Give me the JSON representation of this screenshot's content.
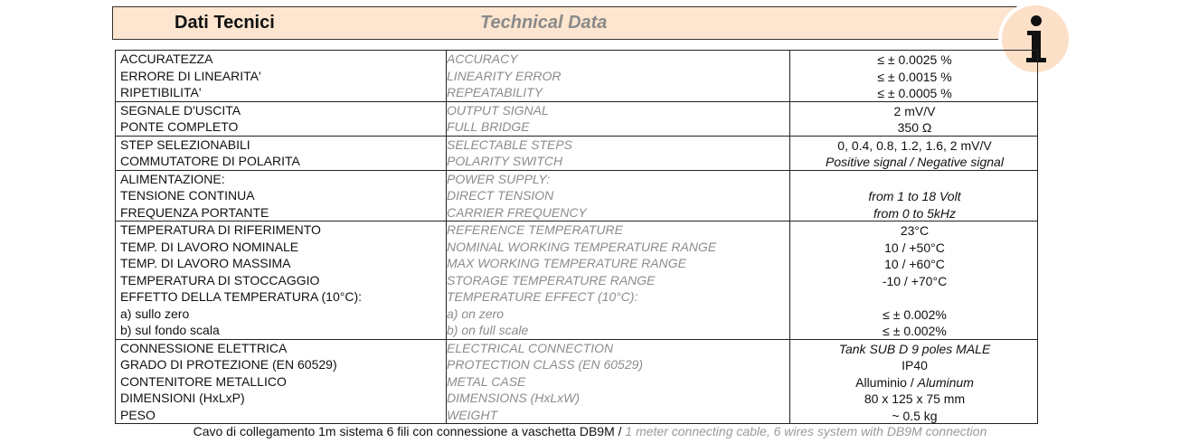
{
  "header": {
    "title_it": "Dati Tecnici",
    "title_en": "Technical Data"
  },
  "groups": [
    {
      "rows": [
        {
          "it": "ACCURATEZZA",
          "en": "ACCURACY",
          "value": "≤ ± 0.0025 %"
        },
        {
          "it": "ERRORE DI LINEARITA'",
          "en": "LINEARITY ERROR",
          "value": "≤ ± 0.0015 %"
        },
        {
          "it": "RIPETIBILITA'",
          "en": "REPEATABILITY",
          "value": "≤ ± 0.0005 %"
        }
      ]
    },
    {
      "rows": [
        {
          "it": "SEGNALE D'USCITA",
          "en": "OUTPUT SIGNAL",
          "value": "2 mV/V"
        },
        {
          "it": "PONTE COMPLETO",
          "en": "FULL BRIDGE",
          "value": "350 Ω"
        }
      ]
    },
    {
      "rows": [
        {
          "it": "STEP SELEZIONABILI",
          "en": "SELECTABLE STEPS",
          "value": "0, 0.4, 0.8, 1.2, 1.6, 2 mV/V"
        },
        {
          "it": "COMMUTATORE DI POLARITA",
          "en": "POLARITY SWITCH",
          "value_italic": "Positive signal / Negative signal"
        }
      ]
    },
    {
      "rows": [
        {
          "it": "ALIMENTAZIONE:",
          "en": "POWER SUPPLY:"
        },
        {
          "it": "TENSIONE CONTINUA",
          "en": "DIRECT TENSION",
          "value_italic": "from 1 to 18 Volt"
        },
        {
          "it": "FREQUENZA PORTANTE",
          "en": "CARRIER FREQUENCY",
          "value_italic": "from 0 to 5kHz"
        }
      ]
    },
    {
      "rows": [
        {
          "it": "TEMPERATURA DI RIFERIMENTO",
          "en": "REFERENCE TEMPERATURE",
          "value": "23°C"
        },
        {
          "it": "TEMP. DI LAVORO NOMINALE",
          "en": "NOMINAL WORKING TEMPERATURE RANGE",
          "value": "10 / +50°C"
        },
        {
          "it": "TEMP. DI LAVORO MASSIMA",
          "en": "MAX WORKING TEMPERATURE RANGE",
          "value": "10 / +60°C"
        },
        {
          "it": "TEMPERATURA DI STOCCAGGIO",
          "en": "STORAGE TEMPERATURE RANGE",
          "value": "-10 / +70°C"
        },
        {
          "it": "EFFETTO DELLA TEMPERATURA (10°C):",
          "en": "TEMPERATURE EFFECT (10°C):"
        },
        {
          "it": "a) sullo zero",
          "en": "a) on zero",
          "value": "≤ ± 0.002%"
        },
        {
          "it": "b) sul fondo scala",
          "en": "b) on full scale",
          "value": "≤ ± 0.002%"
        }
      ]
    },
    {
      "rows": [
        {
          "it": "CONNESSIONE ELETTRICA",
          "en": "ELECTRICAL CONNECTION",
          "value_italic": "Tank SUB D 9 poles MALE"
        },
        {
          "it": "GRADO DI PROTEZIONE (EN 60529)",
          "en": "PROTECTION CLASS (EN 60529)",
          "value": "IP40"
        },
        {
          "it": "CONTENITORE METALLICO",
          "en": "METAL CASE",
          "value": "Alluminio /",
          "value_italic": "Aluminum"
        },
        {
          "it": "DIMENSIONI (HxLxP)",
          "en": "DIMENSIONS (HxLxW)",
          "value": "80 x 125 x 75 mm"
        },
        {
          "it": "PESO",
          "en": "WEIGHT",
          "value": "~ 0.5 kg"
        }
      ]
    }
  ],
  "footer": {
    "it": "Cavo di collegamento 1m sistema 6 fili con connessione a vaschetta DB9M /",
    "en": "1 meter connecting cable, 6 wires system with DB9M connection"
  }
}
